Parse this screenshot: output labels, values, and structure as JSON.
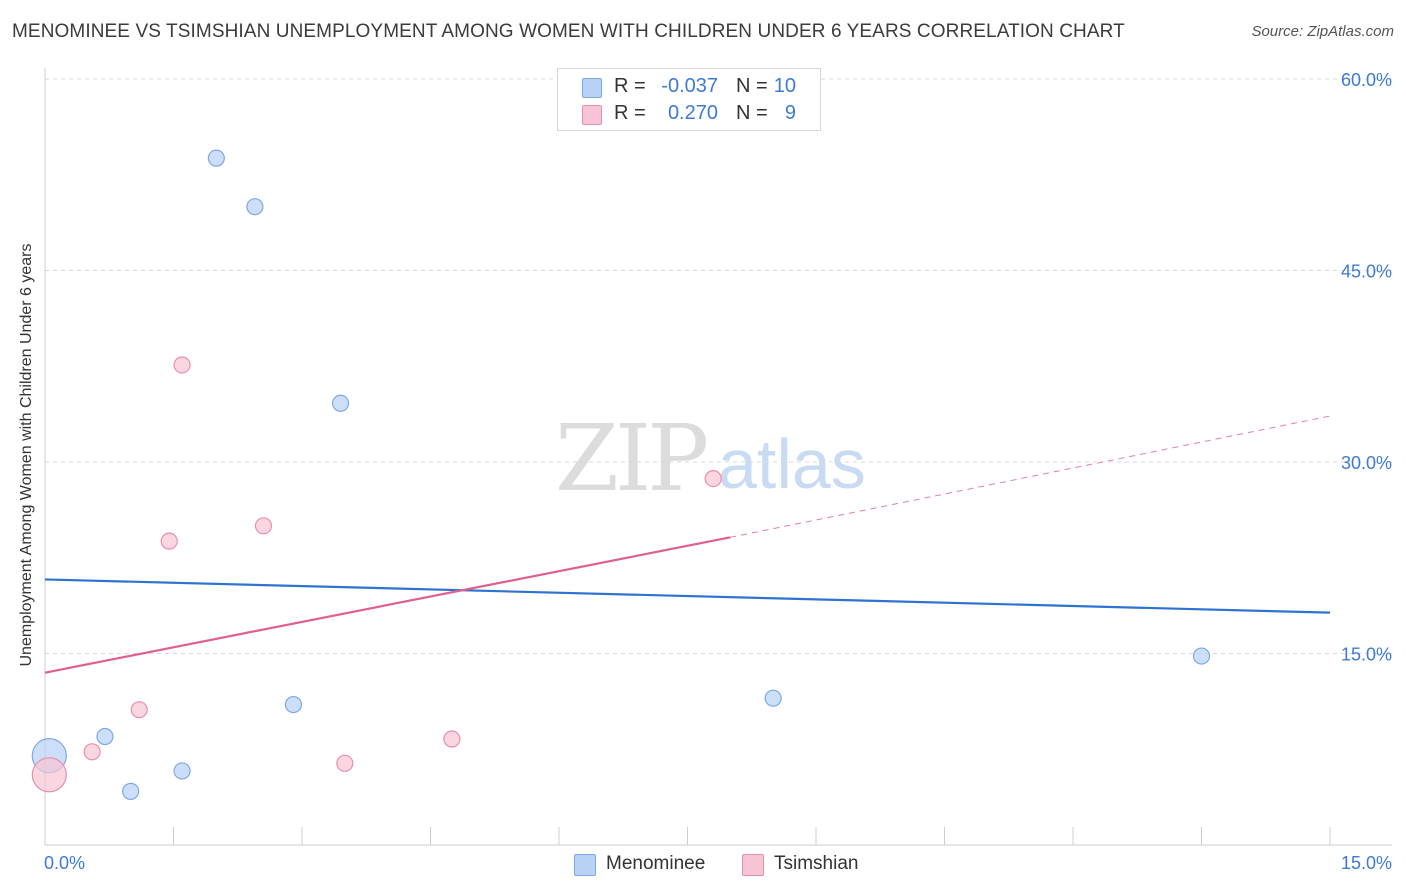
{
  "header": {
    "title": "MENOMINEE VS TSIMSHIAN UNEMPLOYMENT AMONG WOMEN WITH CHILDREN UNDER 6 YEARS CORRELATION CHART",
    "source": "Source: ZipAtlas.com"
  },
  "watermark": {
    "zip": "ZIP",
    "atlas": "atlas"
  },
  "legend": {
    "r_label": "R =",
    "n_label": "N =",
    "items": [
      {
        "name": "Menominee",
        "r": "-0.037",
        "n": "10",
        "fill": "#b8d2f5",
        "stroke": "#7ea8e3"
      },
      {
        "name": "Tsimshian",
        "r": "0.270",
        "n": "9",
        "fill": "#f7c4d3",
        "stroke": "#ea8fab"
      }
    ]
  },
  "colors": {
    "blue_line": "#2f73d0",
    "pink_line": "#e0608a",
    "axis_text": "#3d7bd2",
    "grid": "#d9d9d9"
  },
  "chart_data": {
    "type": "scatter",
    "title": "MENOMINEE VS TSIMSHIAN UNEMPLOYMENT AMONG WOMEN WITH CHILDREN UNDER 6 YEARS CORRELATION CHART",
    "xlabel": "",
    "ylabel": "Unemployment Among Women with Children Under 6 years",
    "xlim": [
      0,
      15
    ],
    "ylim": [
      0,
      60
    ],
    "x_tick_labels": [
      "0.0%",
      "15.0%"
    ],
    "y_ticks": [
      15,
      30,
      45,
      60
    ],
    "y_tick_labels": [
      "15.0%",
      "30.0%",
      "45.0%",
      "60.0%"
    ],
    "grid": true,
    "series": [
      {
        "name": "Menominee",
        "points": [
          {
            "x": 0.05,
            "y": 7.0,
            "size": "large"
          },
          {
            "x": 0.7,
            "y": 8.5
          },
          {
            "x": 1.0,
            "y": 4.2
          },
          {
            "x": 1.6,
            "y": 5.8
          },
          {
            "x": 2.0,
            "y": 53.8
          },
          {
            "x": 2.45,
            "y": 50.0
          },
          {
            "x": 2.9,
            "y": 11.0
          },
          {
            "x": 3.45,
            "y": 34.6
          },
          {
            "x": 8.5,
            "y": 11.5
          },
          {
            "x": 13.5,
            "y": 14.8
          }
        ],
        "trend": {
          "x": [
            0,
            15
          ],
          "y": [
            20.8,
            18.2
          ],
          "style": "solid"
        }
      },
      {
        "name": "Tsimshian",
        "points": [
          {
            "x": 0.05,
            "y": 5.5,
            "size": "large"
          },
          {
            "x": 0.55,
            "y": 7.3
          },
          {
            "x": 1.1,
            "y": 10.6
          },
          {
            "x": 1.45,
            "y": 23.8
          },
          {
            "x": 1.6,
            "y": 37.6
          },
          {
            "x": 2.55,
            "y": 25.0
          },
          {
            "x": 3.5,
            "y": 6.4
          },
          {
            "x": 4.75,
            "y": 8.3
          },
          {
            "x": 7.8,
            "y": 28.7
          }
        ],
        "trend": {
          "x": [
            0,
            8.0
          ],
          "y": [
            13.5,
            24.1
          ],
          "style": "solid"
        },
        "trend_extension": {
          "x": [
            8.0,
            15
          ],
          "y": [
            24.1,
            33.6
          ],
          "style": "dashed"
        }
      }
    ]
  }
}
